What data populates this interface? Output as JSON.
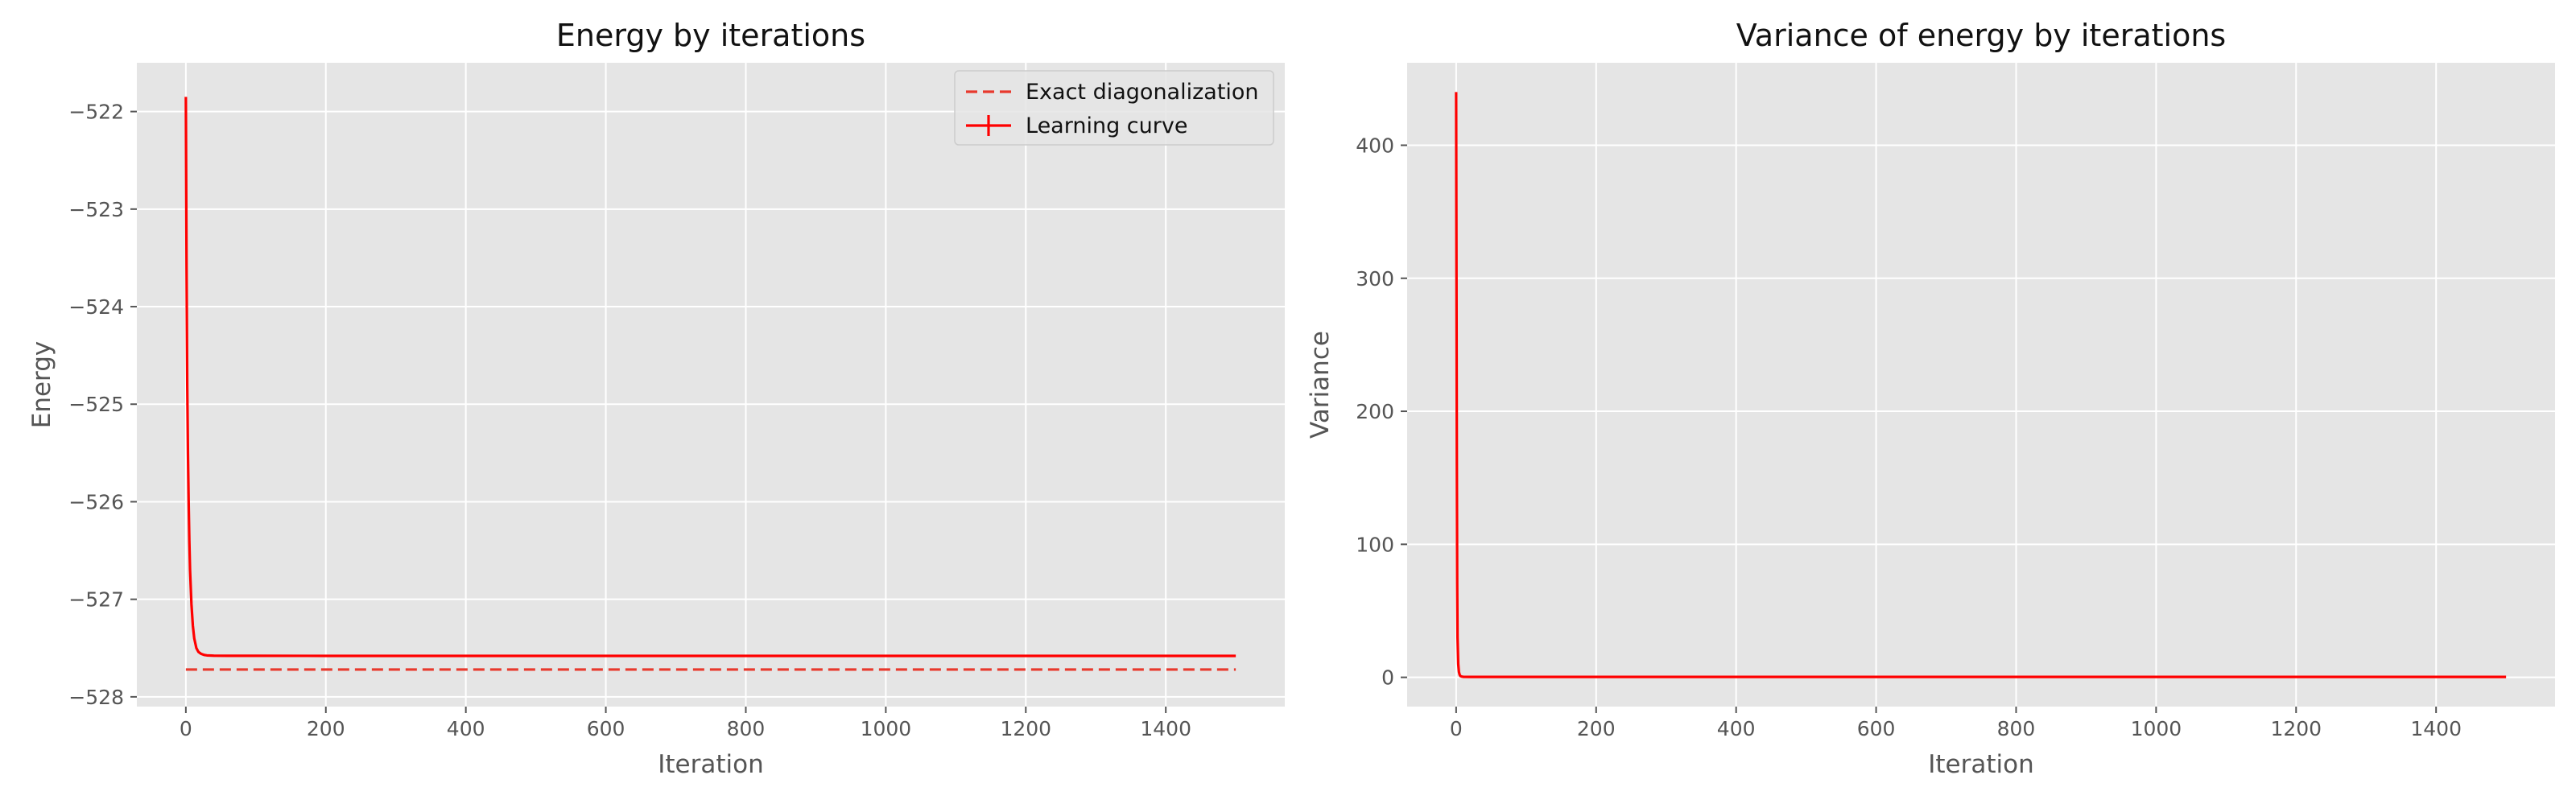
{
  "chart_data": [
    {
      "type": "line",
      "title": "Energy by iterations",
      "xlabel": "Iteration",
      "ylabel": "Energy",
      "xlim": [
        -70,
        1570
      ],
      "ylim": [
        -528.1,
        -521.5
      ],
      "xticks": [
        0,
        200,
        400,
        600,
        800,
        1000,
        1200,
        1400
      ],
      "xtick_labels": [
        "0",
        "200",
        "400",
        "600",
        "800",
        "1000",
        "1200",
        "1400"
      ],
      "yticks": [
        -528,
        -527,
        -526,
        -525,
        -524,
        -523,
        -522
      ],
      "ytick_labels": [
        "−528",
        "−527",
        "−526",
        "−525",
        "−524",
        "−523",
        "−522"
      ],
      "grid": true,
      "legend": "top-right",
      "series": [
        {
          "name": "Exact diagonalization",
          "style": "dashed",
          "color": "#e8392d",
          "x": [
            0,
            1500
          ],
          "y": [
            -527.72,
            -527.72
          ]
        },
        {
          "name": "Learning curve",
          "style": "solid",
          "color": "#ff0000",
          "x": [
            0,
            1,
            2,
            3,
            4,
            5,
            6,
            8,
            10,
            12,
            15,
            18,
            22,
            26,
            30,
            40,
            60,
            100,
            200,
            400,
            600,
            800,
            1000,
            1200,
            1400,
            1500
          ],
          "y": [
            -521.85,
            -523.6,
            -524.8,
            -525.5,
            -526.0,
            -526.4,
            -526.7,
            -527.05,
            -527.27,
            -527.4,
            -527.5,
            -527.54,
            -527.56,
            -527.57,
            -527.575,
            -527.578,
            -527.579,
            -527.579,
            -527.58,
            -527.58,
            -527.58,
            -527.58,
            -527.58,
            -527.58,
            -527.58,
            -527.58
          ]
        }
      ]
    },
    {
      "type": "line",
      "title": "Variance of energy by iterations",
      "xlabel": "Iteration",
      "ylabel": "Variance",
      "xlim": [
        -70,
        1570
      ],
      "ylim": [
        -22,
        462
      ],
      "xticks": [
        0,
        200,
        400,
        600,
        800,
        1000,
        1200,
        1400
      ],
      "xtick_labels": [
        "0",
        "200",
        "400",
        "600",
        "800",
        "1000",
        "1200",
        "1400"
      ],
      "yticks": [
        0,
        100,
        200,
        300,
        400
      ],
      "ytick_labels": [
        "0",
        "100",
        "200",
        "300",
        "400"
      ],
      "grid": true,
      "series": [
        {
          "color": "#ff0000",
          "x": [
            0,
            0.5,
            1,
            1.5,
            2,
            3,
            4,
            5,
            6,
            8,
            10,
            20,
            100,
            1500
          ],
          "y": [
            440,
            300,
            160,
            70,
            30,
            10,
            4,
            2,
            1,
            0.6,
            0.4,
            0.3,
            0.3,
            0.3
          ]
        }
      ]
    }
  ]
}
